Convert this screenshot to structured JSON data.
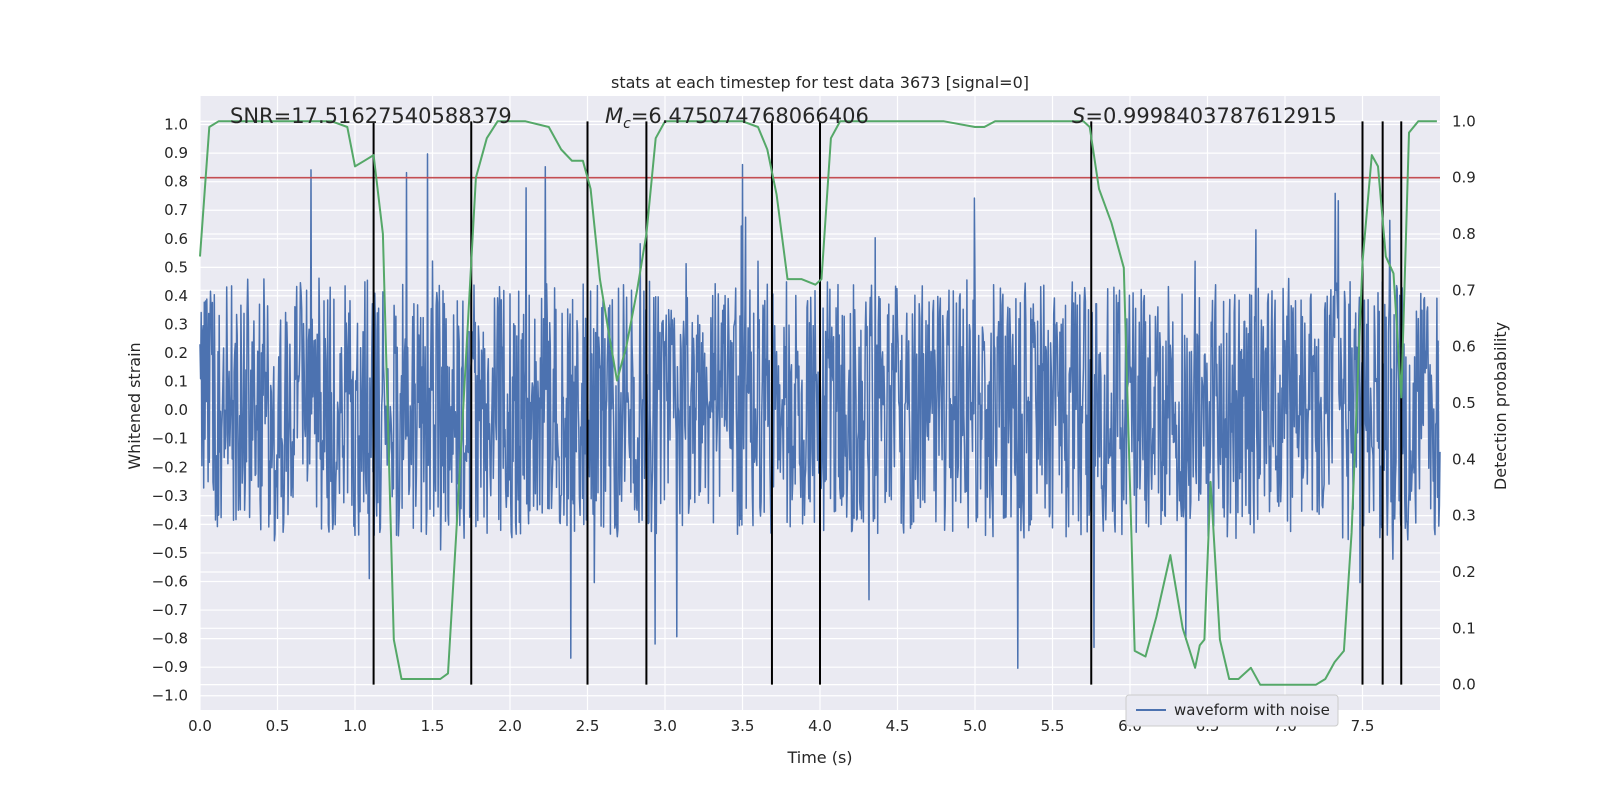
{
  "chart_data": {
    "type": "line",
    "title": "stats at each timestep for test data 3673 [signal=0]",
    "xlabel": "Time (s)",
    "ylabel": "Whitened strain",
    "ylabel_right": "Detection probability",
    "xlim": [
      0,
      8
    ],
    "ylim": [
      -1.05,
      1.1
    ],
    "ylim_right": [
      -0.045,
      1.045
    ],
    "x_ticks": [
      "0.0",
      "0.5",
      "1.0",
      "1.5",
      "2.0",
      "2.5",
      "3.0",
      "3.5",
      "4.0",
      "4.5",
      "5.0",
      "5.5",
      "6.0",
      "6.5",
      "7.0",
      "7.5"
    ],
    "y_ticks": [
      "1.0",
      "0.9",
      "0.8",
      "0.7",
      "0.6",
      "0.5",
      "0.4",
      "0.3",
      "0.2",
      "0.1",
      "0.0",
      "−0.1",
      "−0.2",
      "−0.3",
      "−0.4",
      "−0.5",
      "−0.6",
      "−0.7",
      "−0.8",
      "−0.9",
      "−1.0"
    ],
    "y_ticks_right": [
      "1.0",
      "0.9",
      "0.8",
      "0.7",
      "0.6",
      "0.5",
      "0.4",
      "0.3",
      "0.2",
      "0.1",
      "0.0"
    ],
    "annotations": {
      "snr": "SNR=17.51627540588379",
      "mc_symbol": "M",
      "mc_subscript": "c",
      "mc_value": "=6.475074768066406",
      "s_symbol": "S",
      "s_value": "=0.9998403787612915"
    },
    "threshold_line": {
      "right_axis_value": 0.9,
      "color": "#c44e52"
    },
    "vertical_markers": [
      1.12,
      1.75,
      2.5,
      2.88,
      3.69,
      4.0,
      5.75,
      7.5,
      7.63,
      7.75
    ],
    "legend": {
      "label": "waveform with noise",
      "position": "lower-right"
    },
    "series": [
      {
        "name": "waveform with noise",
        "axis": "left",
        "color": "#4c72b0",
        "kind": "noise",
        "typical_range": [
          -0.42,
          0.47
        ],
        "peak_range": [
          -0.93,
          0.98
        ]
      },
      {
        "name": "detection probability",
        "axis": "right",
        "color": "#55a868",
        "x": [
          0,
          0.06,
          0.12,
          0.2,
          0.3,
          0.5,
          0.7,
          0.85,
          0.95,
          1.0,
          1.06,
          1.12,
          1.18,
          1.25,
          1.3,
          1.38,
          1.45,
          1.5,
          1.55,
          1.6,
          1.66,
          1.72,
          1.78,
          1.85,
          1.92,
          2.0,
          2.1,
          2.25,
          2.33,
          2.4,
          2.47,
          2.52,
          2.58,
          2.64,
          2.69,
          2.75,
          2.82,
          2.88,
          2.94,
          3.0,
          3.1,
          3.3,
          3.5,
          3.6,
          3.66,
          3.72,
          3.79,
          3.88,
          3.97,
          4.01,
          4.07,
          4.13,
          4.2,
          4.5,
          4.8,
          5.0,
          5.06,
          5.13,
          5.3,
          5.5,
          5.7,
          5.74,
          5.8,
          5.88,
          5.96,
          6.03,
          6.1,
          6.17,
          6.26,
          6.34,
          6.42,
          6.45,
          6.48,
          6.52,
          6.58,
          6.64,
          6.7,
          6.78,
          6.84,
          6.92,
          7.0,
          7.1,
          7.2,
          7.26,
          7.32,
          7.38,
          7.43,
          7.5,
          7.56,
          7.6,
          7.65,
          7.7,
          7.75,
          7.8,
          7.86,
          7.92,
          7.98
        ],
        "values": [
          0.76,
          0.99,
          1.0,
          1.0,
          1.0,
          1.0,
          1.0,
          1.0,
          0.99,
          0.92,
          0.93,
          0.94,
          0.8,
          0.08,
          0.01,
          0.01,
          0.01,
          0.01,
          0.01,
          0.02,
          0.3,
          0.6,
          0.9,
          0.97,
          1.0,
          1.0,
          1.0,
          0.99,
          0.95,
          0.93,
          0.93,
          0.88,
          0.72,
          0.62,
          0.54,
          0.6,
          0.7,
          0.8,
          0.97,
          1.0,
          1.0,
          1.0,
          1.0,
          0.99,
          0.95,
          0.87,
          0.72,
          0.72,
          0.71,
          0.72,
          0.97,
          1.0,
          1.0,
          1.0,
          1.0,
          0.99,
          0.99,
          1.0,
          1.0,
          1.0,
          1.0,
          0.99,
          0.88,
          0.82,
          0.74,
          0.06,
          0.05,
          0.12,
          0.23,
          0.1,
          0.03,
          0.07,
          0.08,
          0.36,
          0.08,
          0.01,
          0.01,
          0.03,
          0.0,
          0.0,
          0.0,
          0.0,
          0.0,
          0.01,
          0.04,
          0.06,
          0.27,
          0.75,
          0.94,
          0.92,
          0.76,
          0.73,
          0.51,
          0.98,
          1.0,
          1.0,
          1.0
        ]
      }
    ]
  }
}
